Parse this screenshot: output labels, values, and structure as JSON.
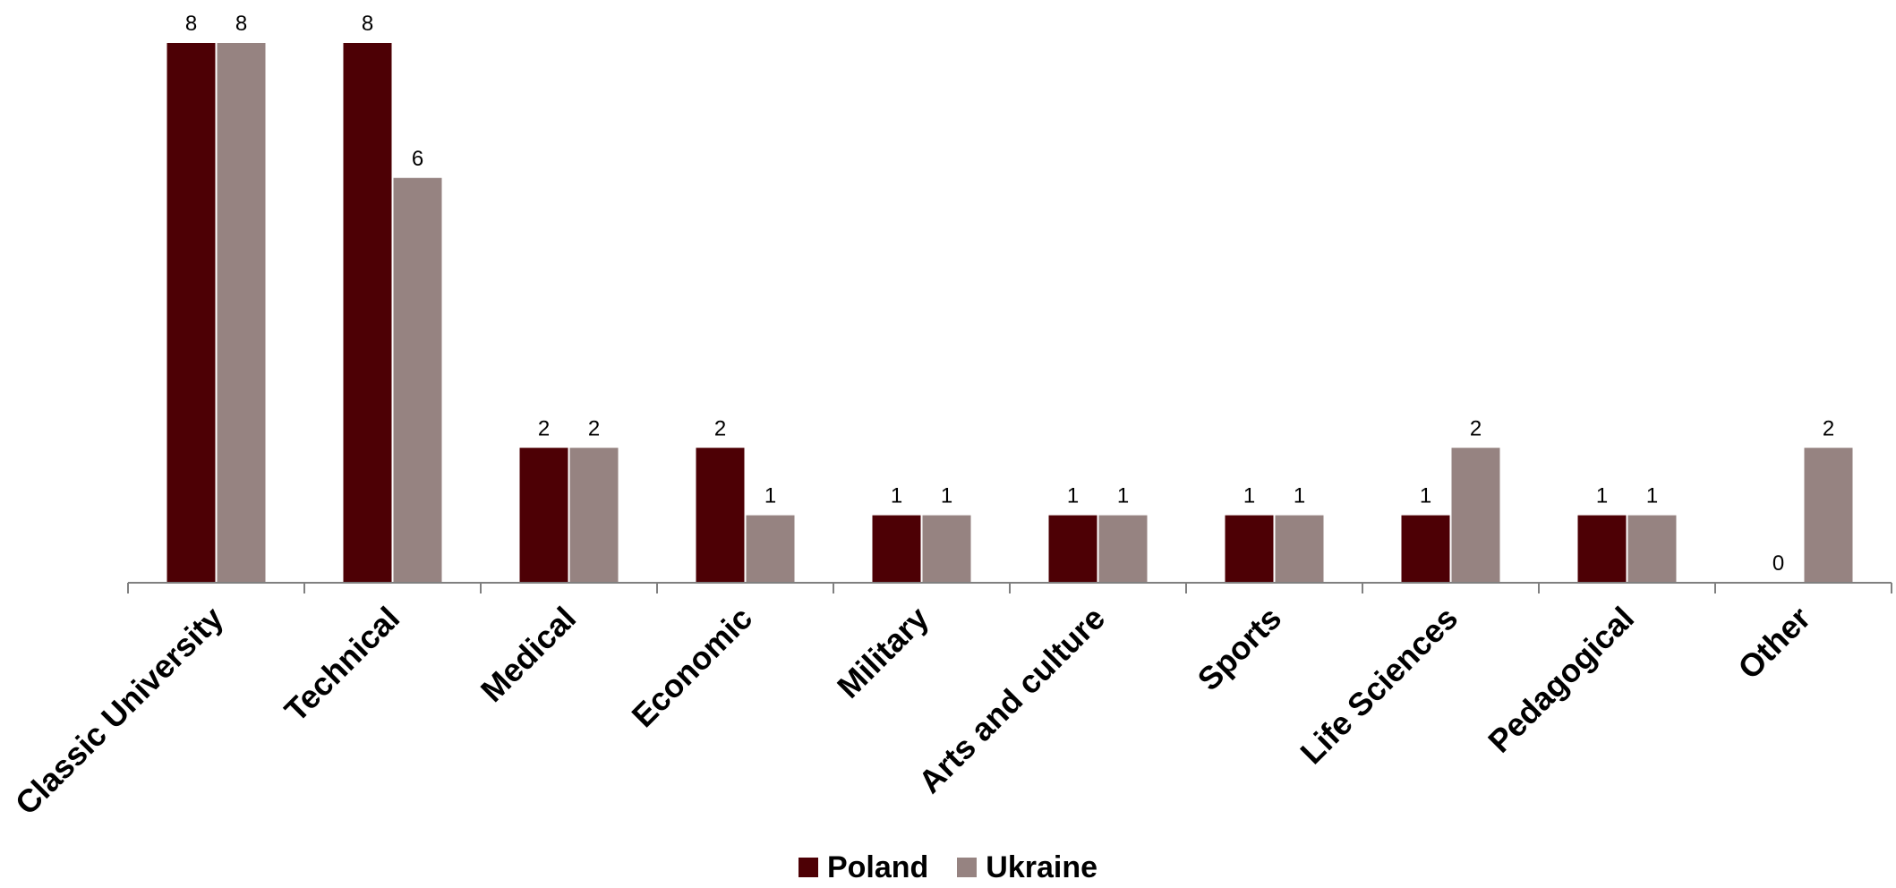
{
  "colors": {
    "poland": "#4d0005",
    "ukraine": "#968381",
    "axis": "#808080",
    "label_text": "#000000"
  },
  "legend": {
    "poland_label": "Poland",
    "ukraine_label": "Ukraine"
  },
  "chart_data": {
    "type": "bar",
    "categories": [
      "Classic University",
      "Technical",
      "Medical",
      "Economic",
      "Military",
      "Arts and culture",
      "Sports",
      "Life Sciences",
      "Pedagogical",
      "Other"
    ],
    "series": [
      {
        "name": "Poland",
        "values": [
          8,
          8,
          2,
          2,
          1,
          1,
          1,
          1,
          1,
          0
        ]
      },
      {
        "name": "Ukraine",
        "values": [
          8,
          6,
          2,
          1,
          1,
          1,
          1,
          2,
          1,
          2
        ]
      }
    ],
    "ylim": [
      0,
      8
    ],
    "data_labels": true,
    "grid": false,
    "legend_position": "bottom-center",
    "x_tick_rotation_deg": -45
  }
}
